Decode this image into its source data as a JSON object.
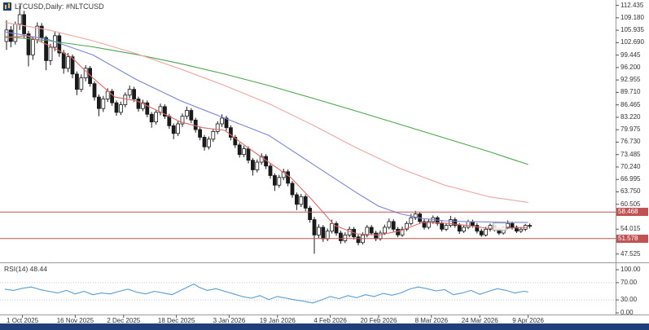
{
  "window": {
    "symbol_label": "LTCUSD,Daily: #NLTCUSD",
    "bottom_bar_color": "#1e3f7a"
  },
  "chart_data": {
    "type": "candlestick",
    "title": "LTCUSD,Daily: #NLTCUSD",
    "timeframe": "Daily",
    "y_axis": {
      "visible_range": [
        46.2,
        113.4
      ],
      "labels": [
        "112.435",
        "109.180",
        "105.935",
        "102.690",
        "99.445",
        "96.200",
        "92.955",
        "89.710",
        "86.465",
        "83.220",
        "79.975",
        "76.730",
        "73.485",
        "70.240",
        "66.995",
        "63.750",
        "60.505",
        "54.015",
        "47.525"
      ]
    },
    "x_axis": {
      "labels": [
        {
          "label": "1 Oct 2025",
          "bar": 4
        },
        {
          "label": "16 Nov 2025",
          "bar": 16
        },
        {
          "label": "2 Dec 2025",
          "bar": 27
        },
        {
          "label": "18 Dec 2025",
          "bar": 39
        },
        {
          "label": "3 Jan 2026",
          "bar": 51
        },
        {
          "label": "19 Jan 2026",
          "bar": 62
        },
        {
          "label": "4 Feb 2026",
          "bar": 74
        },
        {
          "label": "20 Feb 2026",
          "bar": 85
        },
        {
          "label": "8 Mar 2026",
          "bar": 97
        },
        {
          "label": "24 Mar 2026",
          "bar": 108
        },
        {
          "label": "9 Apr 2026",
          "bar": 119
        }
      ]
    },
    "price_levels": [
      {
        "label": "58.468",
        "value": 58.468,
        "color": "#c05252"
      },
      {
        "label": "51.578",
        "value": 51.578,
        "color": "#c05252"
      }
    ],
    "candle_colors": {
      "up_fill": "#ffffff",
      "down_fill": "#1a1a1a",
      "outline": "#1a1a1a"
    },
    "candles": [
      [
        103.0,
        108.5,
        100.8,
        106.0
      ],
      [
        106.0,
        107.0,
        101.5,
        103.0
      ],
      [
        103.0,
        108.2,
        102.2,
        107.5
      ],
      [
        107.5,
        112.4,
        106.0,
        110.0
      ],
      [
        110.0,
        111.0,
        103.8,
        105.0
      ],
      [
        105.0,
        105.8,
        96.5,
        99.5
      ],
      [
        99.5,
        104.2,
        98.2,
        103.5
      ],
      [
        103.5,
        108.0,
        102.5,
        107.0
      ],
      [
        107.0,
        107.8,
        102.8,
        104.0
      ],
      [
        104.0,
        104.5,
        95.5,
        98.0
      ],
      [
        98.0,
        102.4,
        96.8,
        101.5
      ],
      [
        101.5,
        105.5,
        100.5,
        104.5
      ],
      [
        104.5,
        105.2,
        99.0,
        100.0
      ],
      [
        100.0,
        100.8,
        94.6,
        96.0
      ],
      [
        96.0,
        100.0,
        95.0,
        99.0
      ],
      [
        99.0,
        99.6,
        93.4,
        94.5
      ],
      [
        94.5,
        95.2,
        89.0,
        90.5
      ],
      [
        90.5,
        94.4,
        89.8,
        93.5
      ],
      [
        93.5,
        96.8,
        92.6,
        96.0
      ],
      [
        96.0,
        96.6,
        91.2,
        92.0
      ],
      [
        92.0,
        92.6,
        87.6,
        88.5
      ],
      [
        88.5,
        89.2,
        83.5,
        85.5
      ],
      [
        85.5,
        88.8,
        84.6,
        88.0
      ],
      [
        88.0,
        90.8,
        87.2,
        90.0
      ],
      [
        90.0,
        90.6,
        86.2,
        87.0
      ],
      [
        87.0,
        87.6,
        83.6,
        84.5
      ],
      [
        84.5,
        87.3,
        83.8,
        86.5
      ],
      [
        86.5,
        89.7,
        85.8,
        89.0
      ],
      [
        89.0,
        91.5,
        88.2,
        90.5
      ],
      [
        90.5,
        91.2,
        87.2,
        88.0
      ],
      [
        88.0,
        88.6,
        84.7,
        85.5
      ],
      [
        85.5,
        87.8,
        84.8,
        87.0
      ],
      [
        87.0,
        87.6,
        83.2,
        84.0
      ],
      [
        84.0,
        84.6,
        80.5,
        82.0
      ],
      [
        82.0,
        85.2,
        81.3,
        84.5
      ],
      [
        84.5,
        86.8,
        83.7,
        86.0
      ],
      [
        86.0,
        86.6,
        82.8,
        83.5
      ],
      [
        83.5,
        84.1,
        80.2,
        81.0
      ],
      [
        81.0,
        81.6,
        77.5,
        79.0
      ],
      [
        79.0,
        82.2,
        78.3,
        81.5
      ],
      [
        81.5,
        84.2,
        80.7,
        83.5
      ],
      [
        83.5,
        86.0,
        82.7,
        85.0
      ],
      [
        85.0,
        85.6,
        81.7,
        82.5
      ],
      [
        82.5,
        83.1,
        79.2,
        80.0
      ],
      [
        80.0,
        80.6,
        77.2,
        78.0
      ],
      [
        78.0,
        78.6,
        74.5,
        75.5
      ],
      [
        75.5,
        78.2,
        74.8,
        77.5
      ],
      [
        77.5,
        80.2,
        76.8,
        79.5
      ],
      [
        79.5,
        82.2,
        78.8,
        81.5
      ],
      [
        81.5,
        84.0,
        80.7,
        83.0
      ],
      [
        83.0,
        83.6,
        79.7,
        80.5
      ],
      [
        80.5,
        81.1,
        77.2,
        78.0
      ],
      [
        78.0,
        78.6,
        75.2,
        76.0
      ],
      [
        76.0,
        76.6,
        72.7,
        73.5
      ],
      [
        73.5,
        75.8,
        72.8,
        75.0
      ],
      [
        75.0,
        75.6,
        71.2,
        72.0
      ],
      [
        72.0,
        72.6,
        68.0,
        69.5
      ],
      [
        69.5,
        72.2,
        68.8,
        71.5
      ],
      [
        71.5,
        73.8,
        70.8,
        73.0
      ],
      [
        73.0,
        73.6,
        69.7,
        70.5
      ],
      [
        70.5,
        71.1,
        67.2,
        68.0
      ],
      [
        68.0,
        68.6,
        64.0,
        65.5
      ],
      [
        65.5,
        68.2,
        64.8,
        67.5
      ],
      [
        67.5,
        69.8,
        66.8,
        69.0
      ],
      [
        69.0,
        69.6,
        65.2,
        66.0
      ],
      [
        66.0,
        66.6,
        62.2,
        63.0
      ],
      [
        63.0,
        63.6,
        59.0,
        60.5
      ],
      [
        60.5,
        63.2,
        59.8,
        62.5
      ],
      [
        62.5,
        63.1,
        58.7,
        59.5
      ],
      [
        59.5,
        60.1,
        55.7,
        56.5
      ],
      [
        56.5,
        57.2,
        47.6,
        52.5
      ],
      [
        52.5,
        55.3,
        51.7,
        54.5
      ],
      [
        54.5,
        55.1,
        50.7,
        51.5
      ],
      [
        51.5,
        54.2,
        50.9,
        53.5
      ],
      [
        53.5,
        56.5,
        52.9,
        55.5
      ],
      [
        55.5,
        56.1,
        52.3,
        53.0
      ],
      [
        53.0,
        53.6,
        50.2,
        51.0
      ],
      [
        51.0,
        53.2,
        50.4,
        52.5
      ],
      [
        52.5,
        54.7,
        51.9,
        54.0
      ],
      [
        54.0,
        54.6,
        51.3,
        52.0
      ],
      [
        52.0,
        52.6,
        49.8,
        50.5
      ],
      [
        50.5,
        53.2,
        50.0,
        52.5
      ],
      [
        52.5,
        55.1,
        51.9,
        54.5
      ],
      [
        54.5,
        55.1,
        52.4,
        53.0
      ],
      [
        53.0,
        53.6,
        50.9,
        51.5
      ],
      [
        51.5,
        53.7,
        51.0,
        53.0
      ],
      [
        53.0,
        55.2,
        52.5,
        54.5
      ],
      [
        54.5,
        56.8,
        54.0,
        56.0
      ],
      [
        56.0,
        56.6,
        53.4,
        54.0
      ],
      [
        54.0,
        54.6,
        51.9,
        52.5
      ],
      [
        52.5,
        54.7,
        52.0,
        54.0
      ],
      [
        54.0,
        56.1,
        53.5,
        55.5
      ],
      [
        55.5,
        58.0,
        55.0,
        57.0
      ],
      [
        57.0,
        58.8,
        56.4,
        58.0
      ],
      [
        58.0,
        58.5,
        55.4,
        56.0
      ],
      [
        56.0,
        56.6,
        53.9,
        54.5
      ],
      [
        54.5,
        56.6,
        54.0,
        56.0
      ],
      [
        56.0,
        57.6,
        55.4,
        57.0
      ],
      [
        57.0,
        57.5,
        54.9,
        55.5
      ],
      [
        55.5,
        56.1,
        53.4,
        54.0
      ],
      [
        54.0,
        55.6,
        53.5,
        55.0
      ],
      [
        55.0,
        57.5,
        54.5,
        56.5
      ],
      [
        56.5,
        57.1,
        54.4,
        55.0
      ],
      [
        55.0,
        55.6,
        52.8,
        53.5
      ],
      [
        53.5,
        55.1,
        53.0,
        54.5
      ],
      [
        54.5,
        56.5,
        54.0,
        56.0
      ],
      [
        56.0,
        56.5,
        54.4,
        55.0
      ],
      [
        55.0,
        55.6,
        52.9,
        53.5
      ],
      [
        53.5,
        54.1,
        52.0,
        52.5
      ],
      [
        52.5,
        54.6,
        52.1,
        54.0
      ],
      [
        54.0,
        55.5,
        53.4,
        55.0
      ],
      [
        55.0,
        55.5,
        53.4,
        54.0
      ],
      [
        54.0,
        54.5,
        52.5,
        53.0
      ],
      [
        53.0,
        55.0,
        52.6,
        54.5
      ],
      [
        54.5,
        56.3,
        54.0,
        55.5
      ],
      [
        55.5,
        56.0,
        53.9,
        54.5
      ],
      [
        54.5,
        55.0,
        53.0,
        53.5
      ],
      [
        53.5,
        54.6,
        53.0,
        54.0
      ],
      [
        54.0,
        55.4,
        53.5,
        55.0
      ],
      [
        55.0,
        55.5,
        54.2,
        54.9
      ]
    ],
    "moving_averages": [
      {
        "name": "ma-green-slow",
        "color": "#4da64d",
        "points": [
          [
            0,
            104.3
          ],
          [
            10,
            103.2
          ],
          [
            20,
            101.6
          ],
          [
            30,
            99.6
          ],
          [
            40,
            97.2
          ],
          [
            50,
            94.5
          ],
          [
            60,
            91.5
          ],
          [
            70,
            88.2
          ],
          [
            80,
            84.8
          ],
          [
            90,
            81.3
          ],
          [
            100,
            77.8
          ],
          [
            110,
            74.3
          ],
          [
            119,
            70.9
          ]
        ]
      },
      {
        "name": "ma-salmon-long",
        "color": "#f0a4a4",
        "points": [
          [
            0,
            108.0
          ],
          [
            10,
            106.0
          ],
          [
            20,
            103.2
          ],
          [
            30,
            99.8
          ],
          [
            40,
            95.8
          ],
          [
            50,
            91.5
          ],
          [
            60,
            86.8
          ],
          [
            70,
            81.2
          ],
          [
            80,
            75.2
          ],
          [
            90,
            69.8
          ],
          [
            100,
            65.5
          ],
          [
            110,
            62.5
          ],
          [
            119,
            61.0
          ]
        ]
      },
      {
        "name": "ma-blue-mid",
        "color": "#7b84d8",
        "points": [
          [
            0,
            105.5
          ],
          [
            10,
            103.5
          ],
          [
            20,
            99.5
          ],
          [
            30,
            93.0
          ],
          [
            40,
            87.5
          ],
          [
            50,
            83.0
          ],
          [
            60,
            78.5
          ],
          [
            70,
            71.0
          ],
          [
            80,
            63.5
          ],
          [
            85,
            60.0
          ],
          [
            90,
            58.0
          ],
          [
            95,
            56.8
          ],
          [
            100,
            56.2
          ],
          [
            105,
            56.0
          ],
          [
            110,
            55.9
          ],
          [
            115,
            55.8
          ],
          [
            119,
            55.8
          ]
        ]
      },
      {
        "name": "ma-red-fast",
        "color": "#e06a6a",
        "points": [
          [
            0,
            104.0
          ],
          [
            5,
            104.5
          ],
          [
            10,
            102.0
          ],
          [
            15,
            99.0
          ],
          [
            20,
            93.5
          ],
          [
            25,
            88.5
          ],
          [
            30,
            87.5
          ],
          [
            35,
            84.8
          ],
          [
            40,
            82.0
          ],
          [
            45,
            80.5
          ],
          [
            50,
            79.8
          ],
          [
            55,
            75.5
          ],
          [
            60,
            71.5
          ],
          [
            65,
            67.5
          ],
          [
            70,
            61.5
          ],
          [
            75,
            55.0
          ],
          [
            80,
            52.8
          ],
          [
            85,
            52.5
          ],
          [
            90,
            53.6
          ],
          [
            95,
            55.8
          ],
          [
            100,
            55.6
          ],
          [
            105,
            55.0
          ],
          [
            110,
            54.2
          ],
          [
            115,
            54.3
          ],
          [
            119,
            54.5
          ]
        ]
      }
    ],
    "rsi": {
      "label": "RSI(14) 48.44",
      "period": 14,
      "value": 48.44,
      "color": "#5b9bd5",
      "axis_labels": [
        "100.00",
        "70.00",
        "30.00",
        "0.00"
      ],
      "guide_levels": [
        70,
        30
      ],
      "points": [
        [
          0,
          55
        ],
        [
          2,
          52
        ],
        [
          4,
          57
        ],
        [
          6,
          60
        ],
        [
          8,
          54
        ],
        [
          10,
          50
        ],
        [
          12,
          46
        ],
        [
          14,
          52
        ],
        [
          16,
          44
        ],
        [
          18,
          50
        ],
        [
          20,
          42
        ],
        [
          22,
          46
        ],
        [
          24,
          44
        ],
        [
          26,
          50
        ],
        [
          28,
          55
        ],
        [
          30,
          48
        ],
        [
          32,
          44
        ],
        [
          34,
          50
        ],
        [
          36,
          46
        ],
        [
          38,
          42
        ],
        [
          40,
          52
        ],
        [
          42,
          62
        ],
        [
          43,
          67
        ],
        [
          44,
          60
        ],
        [
          46,
          52
        ],
        [
          48,
          56
        ],
        [
          50,
          50
        ],
        [
          52,
          44
        ],
        [
          54,
          38
        ],
        [
          56,
          34
        ],
        [
          58,
          40
        ],
        [
          60,
          31
        ],
        [
          62,
          38
        ],
        [
          64,
          34
        ],
        [
          66,
          30
        ],
        [
          68,
          27
        ],
        [
          70,
          23
        ],
        [
          72,
          30
        ],
        [
          74,
          38
        ],
        [
          76,
          33
        ],
        [
          78,
          40
        ],
        [
          80,
          35
        ],
        [
          82,
          42
        ],
        [
          84,
          38
        ],
        [
          86,
          45
        ],
        [
          88,
          41
        ],
        [
          90,
          46
        ],
        [
          92,
          55
        ],
        [
          94,
          60
        ],
        [
          96,
          56
        ],
        [
          98,
          51
        ],
        [
          100,
          54
        ],
        [
          102,
          42
        ],
        [
          104,
          46
        ],
        [
          106,
          52
        ],
        [
          108,
          43
        ],
        [
          110,
          50
        ],
        [
          112,
          56
        ],
        [
          114,
          52
        ],
        [
          116,
          46
        ],
        [
          118,
          50
        ],
        [
          119,
          48.4
        ]
      ]
    }
  }
}
